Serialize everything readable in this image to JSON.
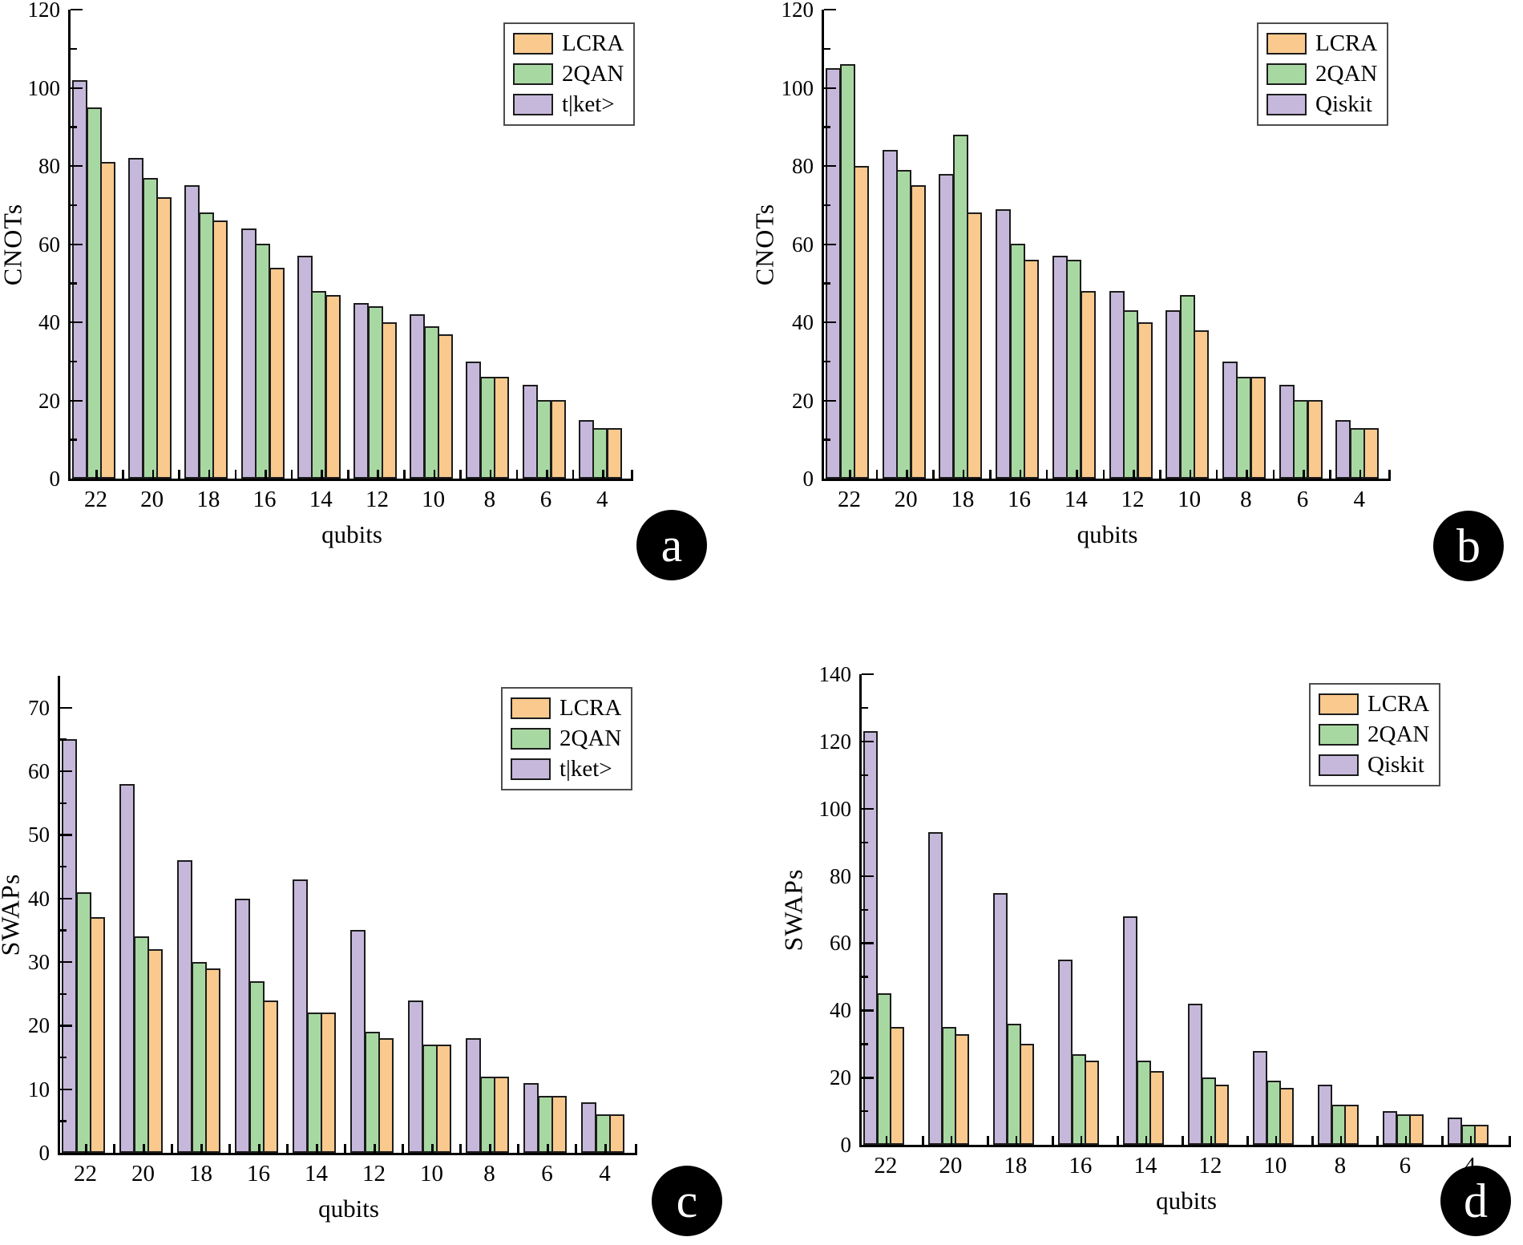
{
  "figure": {
    "background": "#ffffff",
    "panel_labels": [
      "a",
      "b",
      "c",
      "d"
    ],
    "axis_color": "#000000",
    "bar_border_color": "#1c1c1c"
  },
  "chart_data": [
    {
      "id": "a",
      "type": "bar",
      "panel_label": "a",
      "title": "",
      "xlabel": "qubits",
      "ylabel": "CNOTs",
      "categories": [
        "22",
        "20",
        "18",
        "16",
        "14",
        "12",
        "10",
        "8",
        "6",
        "4"
      ],
      "series": [
        {
          "name": "LCRA",
          "color": "#F9C98E",
          "values": [
            81,
            72,
            66,
            54,
            47,
            40,
            37,
            26,
            20,
            13
          ]
        },
        {
          "name": "2QAN",
          "color": "#A8D8A2",
          "values": [
            95,
            77,
            68,
            60,
            48,
            44,
            39,
            26,
            20,
            13
          ]
        },
        {
          "name": "t|ket>",
          "color": "#C6B8DB",
          "values": [
            102,
            82,
            75,
            64,
            57,
            45,
            42,
            30,
            24,
            15
          ]
        }
      ],
      "bar_draw_order": "reversed",
      "ylim": [
        0,
        120
      ],
      "ytick_step": 20,
      "yminor_step": 10,
      "ytick_max": 120,
      "legend_position": "top-right",
      "grid": false
    },
    {
      "id": "b",
      "type": "bar",
      "panel_label": "b",
      "title": "",
      "xlabel": "qubits",
      "ylabel": "CNOTs",
      "categories": [
        "22",
        "20",
        "18",
        "16",
        "14",
        "12",
        "10",
        "8",
        "6",
        "4"
      ],
      "series": [
        {
          "name": "LCRA",
          "color": "#F9C98E",
          "values": [
            80,
            75,
            68,
            56,
            48,
            40,
            38,
            26,
            20,
            13
          ]
        },
        {
          "name": "2QAN",
          "color": "#A8D8A2",
          "values": [
            106,
            79,
            88,
            60,
            56,
            43,
            47,
            26,
            20,
            13
          ]
        },
        {
          "name": "Qiskit",
          "color": "#C6B8DB",
          "values": [
            105,
            84,
            78,
            69,
            57,
            48,
            43,
            30,
            24,
            15
          ]
        }
      ],
      "bar_draw_order": "reversed",
      "ylim": [
        0,
        120
      ],
      "ytick_step": 20,
      "yminor_step": 10,
      "ytick_max": 120,
      "legend_position": "top-right",
      "grid": false
    },
    {
      "id": "c",
      "type": "bar",
      "panel_label": "c",
      "title": "",
      "xlabel": "qubits",
      "ylabel": "SWAPs",
      "categories": [
        "22",
        "20",
        "18",
        "16",
        "14",
        "12",
        "10",
        "8",
        "6",
        "4"
      ],
      "series": [
        {
          "name": "LCRA",
          "color": "#F9C98E",
          "values": [
            37,
            32,
            29,
            24,
            22,
            18,
            17,
            12,
            9,
            6
          ]
        },
        {
          "name": "2QAN",
          "color": "#A8D8A2",
          "values": [
            41,
            34,
            30,
            27,
            22,
            19,
            17,
            12,
            9,
            6
          ]
        },
        {
          "name": "t|ket>",
          "color": "#C6B8DB",
          "values": [
            65,
            58,
            46,
            40,
            43,
            35,
            24,
            18,
            11,
            8
          ]
        }
      ],
      "bar_draw_order": "reversed",
      "ylim": [
        0,
        75
      ],
      "ytick_step": 10,
      "yminor_step": 5,
      "ytick_max": 70,
      "legend_position": "top-right",
      "grid": false
    },
    {
      "id": "d",
      "type": "bar",
      "panel_label": "d",
      "title": "",
      "xlabel": "qubits",
      "ylabel": "SWAPs",
      "categories": [
        "22",
        "20",
        "18",
        "16",
        "14",
        "12",
        "10",
        "8",
        "6",
        "4"
      ],
      "series": [
        {
          "name": "LCRA",
          "color": "#F9C98E",
          "values": [
            35,
            33,
            30,
            25,
            22,
            18,
            17,
            12,
            9,
            6
          ]
        },
        {
          "name": "2QAN",
          "color": "#A8D8A2",
          "values": [
            45,
            35,
            36,
            27,
            25,
            20,
            19,
            12,
            9,
            6
          ]
        },
        {
          "name": "Qiskit",
          "color": "#C6B8DB",
          "values": [
            123,
            93,
            75,
            55,
            68,
            42,
            28,
            18,
            10,
            8
          ]
        }
      ],
      "bar_draw_order": "reversed",
      "ylim": [
        0,
        140
      ],
      "ytick_step": 20,
      "yminor_step": 10,
      "ytick_max": 140,
      "legend_position": "top-right",
      "grid": false
    }
  ]
}
